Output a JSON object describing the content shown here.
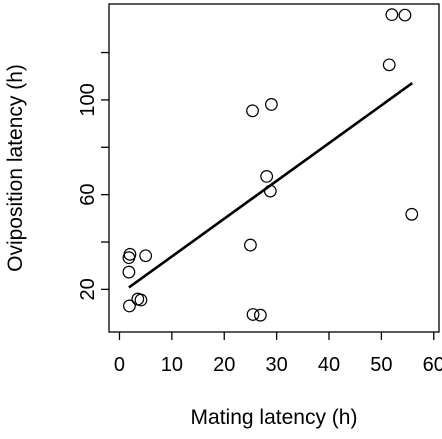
{
  "chart_data": {
    "type": "scatter",
    "title": "",
    "xlabel": "Mating latency (h)",
    "ylabel": "Oviposition latency (h)",
    "xlim": [
      -2.0,
      61.0
    ],
    "ylim": [
      2.0,
      140.5
    ],
    "xticks": [
      0,
      10,
      20,
      30,
      40,
      50,
      60
    ],
    "xtick_labels": [
      "0",
      "10",
      "20",
      "30",
      "40",
      "50",
      "60"
    ],
    "yticks": [
      20,
      40,
      60,
      80,
      100,
      120
    ],
    "ytick_labels": [
      "20",
      "",
      "60",
      "",
      "100",
      ""
    ],
    "grid": false,
    "legend": "none",
    "marker": "open-circle",
    "points": [
      {
        "x": 1.9,
        "y": 13.0
      },
      {
        "x": 3.5,
        "y": 15.9
      },
      {
        "x": 4.1,
        "y": 15.5
      },
      {
        "x": 1.8,
        "y": 27.3
      },
      {
        "x": 1.8,
        "y": 33.4
      },
      {
        "x": 2.0,
        "y": 34.8
      },
      {
        "x": 5.0,
        "y": 34.2
      },
      {
        "x": 25.0,
        "y": 38.7
      },
      {
        "x": 25.5,
        "y": 9.4
      },
      {
        "x": 26.9,
        "y": 9.1
      },
      {
        "x": 25.4,
        "y": 95.4
      },
      {
        "x": 29.0,
        "y": 98.1
      },
      {
        "x": 28.1,
        "y": 67.7
      },
      {
        "x": 28.8,
        "y": 61.5
      },
      {
        "x": 51.5,
        "y": 114.8
      },
      {
        "x": 52.0,
        "y": 136.0
      },
      {
        "x": 54.5,
        "y": 135.8
      },
      {
        "x": 55.8,
        "y": 51.7
      }
    ],
    "fit_line": {
      "x": [
        1.8,
        55.9
      ],
      "y": [
        20.8,
        107.1
      ]
    },
    "colors": {
      "points": "#000000",
      "line": "#000000",
      "axes": "#000000",
      "background": "#ffffff"
    }
  }
}
